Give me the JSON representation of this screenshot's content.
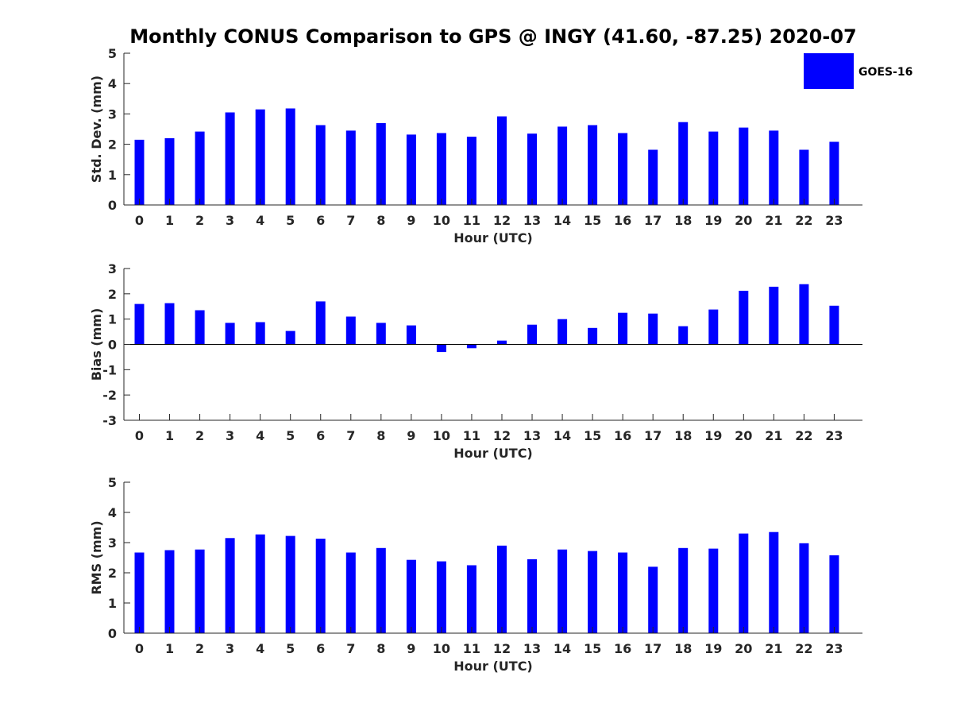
{
  "title": "Monthly CONUS Comparison to GPS @ INGY (41.60, -87.25) 2020-07",
  "colors": {
    "bar": "#0000ff",
    "axis": "#262626",
    "zero_line": "#000000",
    "background": "#ffffff"
  },
  "legend": {
    "label": "GOES-16",
    "placement": "top-right"
  },
  "chart_data": [
    {
      "type": "bar",
      "xlabel": "Hour (UTC)",
      "ylabel": "Std. Dev. (mm)",
      "ylim": [
        0,
        5
      ],
      "yticks": [
        "0",
        "1",
        "2",
        "3",
        "4",
        "5"
      ],
      "categories": [
        "0",
        "1",
        "2",
        "3",
        "4",
        "5",
        "6",
        "7",
        "8",
        "9",
        "10",
        "11",
        "12",
        "13",
        "14",
        "15",
        "16",
        "17",
        "18",
        "19",
        "20",
        "21",
        "22",
        "23"
      ],
      "series": [
        {
          "name": "GOES-16",
          "values": [
            2.15,
            2.2,
            2.42,
            3.05,
            3.15,
            3.18,
            2.63,
            2.45,
            2.7,
            2.32,
            2.37,
            2.25,
            2.92,
            2.35,
            2.58,
            2.63,
            2.37,
            1.82,
            2.73,
            2.42,
            2.55,
            2.45,
            1.82,
            2.08
          ]
        }
      ]
    },
    {
      "type": "bar",
      "xlabel": "Hour (UTC)",
      "ylabel": "Bias (mm)",
      "ylim": [
        -3,
        3
      ],
      "yticks": [
        "-3",
        "-2",
        "-1",
        "0",
        "1",
        "2",
        "3"
      ],
      "categories": [
        "0",
        "1",
        "2",
        "3",
        "4",
        "5",
        "6",
        "7",
        "8",
        "9",
        "10",
        "11",
        "12",
        "13",
        "14",
        "15",
        "16",
        "17",
        "18",
        "19",
        "20",
        "21",
        "22",
        "23"
      ],
      "series": [
        {
          "name": "GOES-16",
          "values": [
            1.6,
            1.63,
            1.35,
            0.85,
            0.88,
            0.53,
            1.7,
            1.1,
            0.85,
            0.75,
            -0.3,
            -0.15,
            0.15,
            0.78,
            1.0,
            0.65,
            1.25,
            1.22,
            0.72,
            1.38,
            2.12,
            2.28,
            2.38,
            1.53
          ]
        }
      ]
    },
    {
      "type": "bar",
      "xlabel": "Hour (UTC)",
      "ylabel": "RMS (mm)",
      "ylim": [
        0,
        5
      ],
      "yticks": [
        "0",
        "1",
        "2",
        "3",
        "4",
        "5"
      ],
      "categories": [
        "0",
        "1",
        "2",
        "3",
        "4",
        "5",
        "6",
        "7",
        "8",
        "9",
        "10",
        "11",
        "12",
        "13",
        "14",
        "15",
        "16",
        "17",
        "18",
        "19",
        "20",
        "21",
        "22",
        "23"
      ],
      "series": [
        {
          "name": "GOES-16",
          "values": [
            2.67,
            2.75,
            2.77,
            3.15,
            3.27,
            3.22,
            3.13,
            2.67,
            2.82,
            2.43,
            2.38,
            2.25,
            2.9,
            2.45,
            2.77,
            2.72,
            2.67,
            2.2,
            2.82,
            2.8,
            3.3,
            3.35,
            2.98,
            2.58
          ]
        }
      ]
    }
  ]
}
